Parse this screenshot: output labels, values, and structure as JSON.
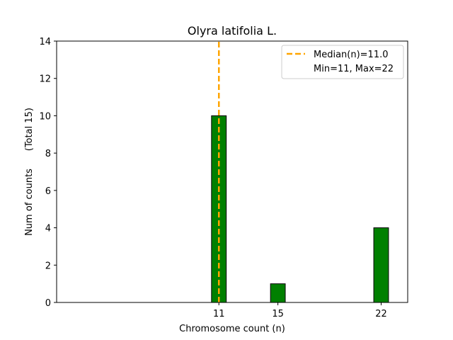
{
  "chart_data": {
    "type": "bar",
    "title": "Olyra latifolia L.",
    "xlabel": "Chromosome count (n)",
    "ylabel": "Num of counts      (Total 15)",
    "xlim": [
      0,
      23.8
    ],
    "ylim": [
      0,
      14
    ],
    "x_ticks": [
      11,
      15,
      22
    ],
    "y_ticks": [
      0,
      2,
      4,
      6,
      8,
      10,
      12,
      14
    ],
    "bar_width": 1,
    "categories": [
      "11",
      "15",
      "22"
    ],
    "bars": [
      {
        "x": 11,
        "value": 10
      },
      {
        "x": 15,
        "value": 1
      },
      {
        "x": 22,
        "value": 4
      }
    ],
    "median_line": {
      "x": 11.0,
      "label": "Median(n)=11.0"
    },
    "legend": {
      "placement": "top-right",
      "entries": [
        "Median(n)=11.0",
        "Min=11, Max=22"
      ]
    },
    "colors": {
      "bar_fill": "#008000",
      "bar_edge": "#000000",
      "median_line": "#ffa500"
    }
  }
}
